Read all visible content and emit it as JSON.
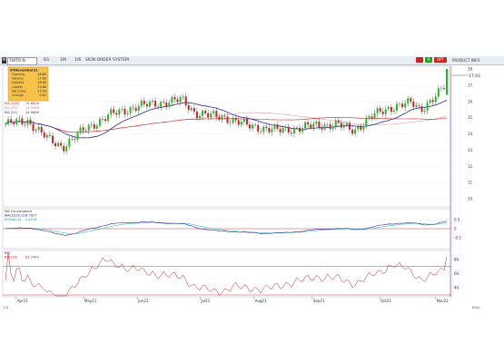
{
  "toolbar": {
    "symbol_box": "",
    "symbol": "TWTR:N",
    "interval_1": "D1",
    "interval_2": "1M",
    "controls": "1/6",
    "chart_label": "SIGN ORDER SYSTEM",
    "btn_red_1": "",
    "btn_green": "A",
    "btn_red_2": "OPT",
    "right_label": "PRODUCT INFO"
  },
  "colors": {
    "price_up": "#22bb22",
    "price_down": "#cc2222",
    "ma_short": "#2a2aa0",
    "ma_long": "#cc2222",
    "ma_mid": "#e0a0a0",
    "macd": "#2a2aa0",
    "signal": "#44c0c0",
    "rsi": "#cc2222",
    "cursor": "#a040c0"
  },
  "info_box": {
    "date": "07November21",
    "rows": [
      {
        "label": "Opening",
        "value": "16.80"
      },
      {
        "label": "Volume",
        "value": "17.80"
      },
      {
        "label": "Highest",
        "value": "18.80"
      },
      {
        "label": "Lowest",
        "value": "13.80"
      },
      {
        "label": "Adj.Close",
        "value": "17.03"
      },
      {
        "label": "Change",
        "value": "0.41"
      }
    ]
  },
  "indicators": {
    "ma_long": {
      "label": "MA (100)",
      "value": "14.6656"
    },
    "ma_mid": {
      "label": "MA (50)",
      "value": "14.5968"
    },
    "ma_short": {
      "label": "MA (21)",
      "value": "14.9406"
    }
  },
  "macd_panel": {
    "title": "MA Convergence",
    "line1": "MACD(26,12)",
    "value1": "0.7827",
    "line2": "SIGNAL(9)",
    "value2": "0.4918",
    "y_ticks": [
      "0.5",
      "0",
      "-0.5"
    ]
  },
  "rsi_panel": {
    "title": "RSI",
    "line1": "RSI (14)",
    "value1": "83.7444",
    "y_ticks": [
      "80.",
      "60.",
      "40."
    ]
  },
  "price_axis": {
    "ticks": [
      "18.",
      "17.",
      "16.",
      "15.",
      "14.",
      "13.",
      "12.",
      "11.",
      "10."
    ],
    "current": "17.03"
  },
  "x_axis": {
    "labels": [
      "Apr21",
      "May21",
      "Jun21",
      "Jul21",
      "Aug21",
      "Sep21",
      "Oct21",
      "Nov21"
    ],
    "footer_left": "1 D",
    "footer_right": "BULL"
  },
  "chart_data": {
    "type": "candlestick",
    "series": [
      {
        "name": "MA (100)",
        "values": []
      },
      {
        "name": "MA (50)",
        "values": []
      },
      {
        "name": "MA (21)",
        "values": []
      }
    ],
    "ylim": [
      10,
      18
    ],
    "last_close": 17.03
  }
}
